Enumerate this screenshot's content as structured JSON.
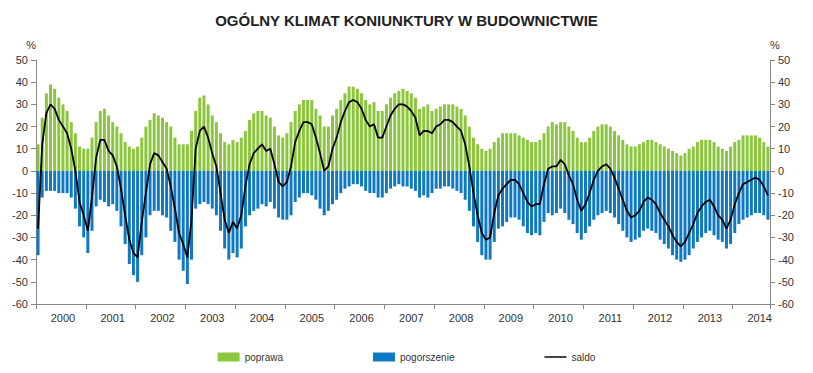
{
  "chart_data": {
    "type": "bar",
    "title": "OGÓLNY KLIMAT KONIUNKTURY W BUDOWNICTWIE",
    "ylabel": "%",
    "y2label": "%",
    "categories": [
      null,
      null,
      null,
      null,
      null,
      null,
      "2000",
      null,
      null,
      null,
      null,
      null,
      null,
      null,
      null,
      null,
      null,
      null,
      "2001",
      null,
      null,
      null,
      null,
      null,
      null,
      null,
      null,
      null,
      null,
      null,
      "2002",
      null,
      null,
      null,
      null,
      null,
      null,
      null,
      null,
      null,
      null,
      null,
      "2003",
      null,
      null,
      null,
      null,
      null,
      null,
      null,
      null,
      null,
      null,
      null,
      "2004",
      null,
      null,
      null,
      null,
      null,
      null,
      null,
      null,
      null,
      null,
      null,
      "2005",
      null,
      null,
      null,
      null,
      null,
      null,
      null,
      null,
      null,
      null,
      null,
      "2006",
      null,
      null,
      null,
      null,
      null,
      null,
      null,
      null,
      null,
      null,
      null,
      "2007",
      null,
      null,
      null,
      null,
      null,
      null,
      null,
      null,
      null,
      null,
      null,
      "2008",
      null,
      null,
      null,
      null,
      null,
      null,
      null,
      null,
      null,
      null,
      null,
      "2009",
      null,
      null,
      null,
      null,
      null,
      null,
      null,
      null,
      null,
      null,
      null,
      "2010",
      null,
      null,
      null,
      null,
      null,
      null,
      null,
      null,
      null,
      null,
      null,
      "2011",
      null,
      null,
      null,
      null,
      null,
      null,
      null,
      null,
      null,
      null,
      null,
      "2012",
      null,
      null,
      null,
      null,
      null,
      null,
      null,
      null,
      null,
      null,
      null,
      "2013",
      null,
      null,
      null,
      null,
      null,
      null,
      null,
      null,
      null,
      null,
      null,
      "2014",
      null,
      null
    ],
    "series": [
      {
        "name": "poprawa",
        "type": "bar",
        "color": "#8cc63e",
        "values": [
          12,
          24,
          35,
          39,
          37,
          33,
          30,
          27,
          22,
          17,
          11,
          10,
          10,
          15,
          22,
          27,
          28,
          25,
          22,
          20,
          17,
          13,
          11,
          10,
          11,
          15,
          20,
          23,
          26,
          25,
          24,
          22,
          20,
          15,
          12,
          12,
          12,
          18,
          27,
          33,
          34,
          30,
          25,
          22,
          17,
          13,
          12,
          14,
          13,
          15,
          18,
          23,
          26,
          27,
          27,
          25,
          24,
          20,
          16,
          15,
          17,
          22,
          27,
          30,
          32,
          32,
          32,
          28,
          25,
          20,
          20,
          25,
          28,
          32,
          35,
          38,
          38,
          37,
          35,
          32,
          30,
          31,
          27,
          27,
          30,
          33,
          35,
          36,
          37,
          36,
          35,
          33,
          28,
          29,
          30,
          27,
          28,
          29,
          30,
          30,
          30,
          29,
          28,
          25,
          20,
          15,
          12,
          10,
          9,
          10,
          13,
          15,
          17,
          17,
          17,
          17,
          16,
          15,
          14,
          13,
          13,
          14,
          17,
          20,
          22,
          21,
          22,
          22,
          20,
          18,
          15,
          13,
          13,
          15,
          18,
          20,
          21,
          21,
          20,
          18,
          16,
          14,
          12,
          11,
          11,
          12,
          13,
          14,
          14,
          13,
          12,
          11,
          10,
          9,
          8,
          7,
          8,
          10,
          11,
          13,
          14,
          14,
          14,
          13,
          11,
          10,
          9,
          11,
          13,
          14,
          16,
          16,
          16,
          16,
          15,
          13,
          11
        ]
      },
      {
        "name": "pogorszenie",
        "type": "bar",
        "color": "#0f78c2",
        "values": [
          -38,
          -12,
          -9,
          -9,
          -9,
          -10,
          -10,
          -10,
          -12,
          -17,
          -25,
          -30,
          -37,
          -27,
          -16,
          -13,
          -14,
          -16,
          -15,
          -18,
          -25,
          -33,
          -42,
          -47,
          -50,
          -38,
          -30,
          -20,
          -18,
          -18,
          -20,
          -21,
          -27,
          -32,
          -40,
          -45,
          -51,
          -40,
          -17,
          -15,
          -14,
          -15,
          -17,
          -20,
          -27,
          -35,
          -40,
          -37,
          -39,
          -35,
          -25,
          -20,
          -18,
          -17,
          -15,
          -16,
          -14,
          -17,
          -21,
          -22,
          -22,
          -20,
          -14,
          -12,
          -10,
          -10,
          -11,
          -13,
          -17,
          -20,
          -18,
          -15,
          -13,
          -10,
          -8,
          -7,
          -6,
          -6,
          -7,
          -9,
          -10,
          -10,
          -12,
          -12,
          -10,
          -8,
          -7,
          -6,
          -7,
          -7,
          -8,
          -9,
          -12,
          -11,
          -12,
          -10,
          -8,
          -8,
          -7,
          -7,
          -8,
          -9,
          -10,
          -13,
          -18,
          -25,
          -32,
          -38,
          -40,
          -40,
          -32,
          -26,
          -25,
          -23,
          -21,
          -21,
          -22,
          -25,
          -28,
          -29,
          -28,
          -29,
          -23,
          -19,
          -20,
          -19,
          -17,
          -19,
          -22,
          -24,
          -28,
          -31,
          -28,
          -25,
          -22,
          -20,
          -19,
          -18,
          -19,
          -21,
          -24,
          -27,
          -30,
          -32,
          -31,
          -30,
          -27,
          -26,
          -27,
          -28,
          -31,
          -33,
          -35,
          -38,
          -40,
          -41,
          -40,
          -38,
          -35,
          -32,
          -30,
          -28,
          -27,
          -29,
          -31,
          -32,
          -35,
          -33,
          -28,
          -24,
          -22,
          -21,
          -20,
          -19,
          -19,
          -20,
          -22
        ]
      },
      {
        "name": "saldo",
        "type": "line",
        "color": "#000000",
        "values": [
          -26,
          12,
          26,
          30,
          28,
          23,
          20,
          17,
          10,
          0,
          -14,
          -20,
          -27,
          -12,
          6,
          14,
          14,
          9,
          7,
          2,
          -8,
          -20,
          -31,
          -37,
          -39,
          -23,
          -10,
          3,
          8,
          7,
          4,
          1,
          -7,
          -17,
          -28,
          -33,
          -39,
          -22,
          10,
          18,
          20,
          15,
          8,
          2,
          -10,
          -22,
          -28,
          -23,
          -26,
          -20,
          -7,
          3,
          8,
          10,
          12,
          9,
          10,
          3,
          -5,
          -7,
          -5,
          2,
          13,
          18,
          22,
          22,
          21,
          15,
          8,
          0,
          2,
          10,
          15,
          22,
          27,
          31,
          32,
          31,
          28,
          23,
          20,
          21,
          15,
          15,
          20,
          25,
          28,
          30,
          30,
          29,
          27,
          24,
          16,
          18,
          18,
          17,
          20,
          21,
          23,
          23,
          22,
          20,
          18,
          12,
          2,
          -10,
          -20,
          -28,
          -31,
          -30,
          -19,
          -11,
          -8,
          -6,
          -4,
          -4,
          -6,
          -10,
          -14,
          -16,
          -15,
          -15,
          -6,
          1,
          2,
          2,
          5,
          3,
          -2,
          -6,
          -13,
          -18,
          -15,
          -10,
          -4,
          0,
          2,
          3,
          1,
          -3,
          -8,
          -13,
          -18,
          -21,
          -20,
          -18,
          -14,
          -12,
          -13,
          -15,
          -19,
          -22,
          -25,
          -29,
          -32,
          -34,
          -32,
          -28,
          -24,
          -19,
          -16,
          -14,
          -13,
          -16,
          -20,
          -22,
          -26,
          -22,
          -15,
          -10,
          -6,
          -5,
          -4,
          -3,
          -4,
          -7,
          -11
        ]
      }
    ],
    "ylim": [
      -60,
      50
    ],
    "yticks": [
      -60,
      -50,
      -40,
      -30,
      -20,
      -10,
      0,
      10,
      20,
      30,
      40,
      50
    ],
    "y2lim": [
      -60,
      50
    ],
    "y2ticks": [
      -60,
      -50,
      -40,
      -30,
      -20,
      -10,
      0,
      10,
      20,
      30,
      40,
      50
    ],
    "grid": false,
    "legend": "bottom"
  }
}
